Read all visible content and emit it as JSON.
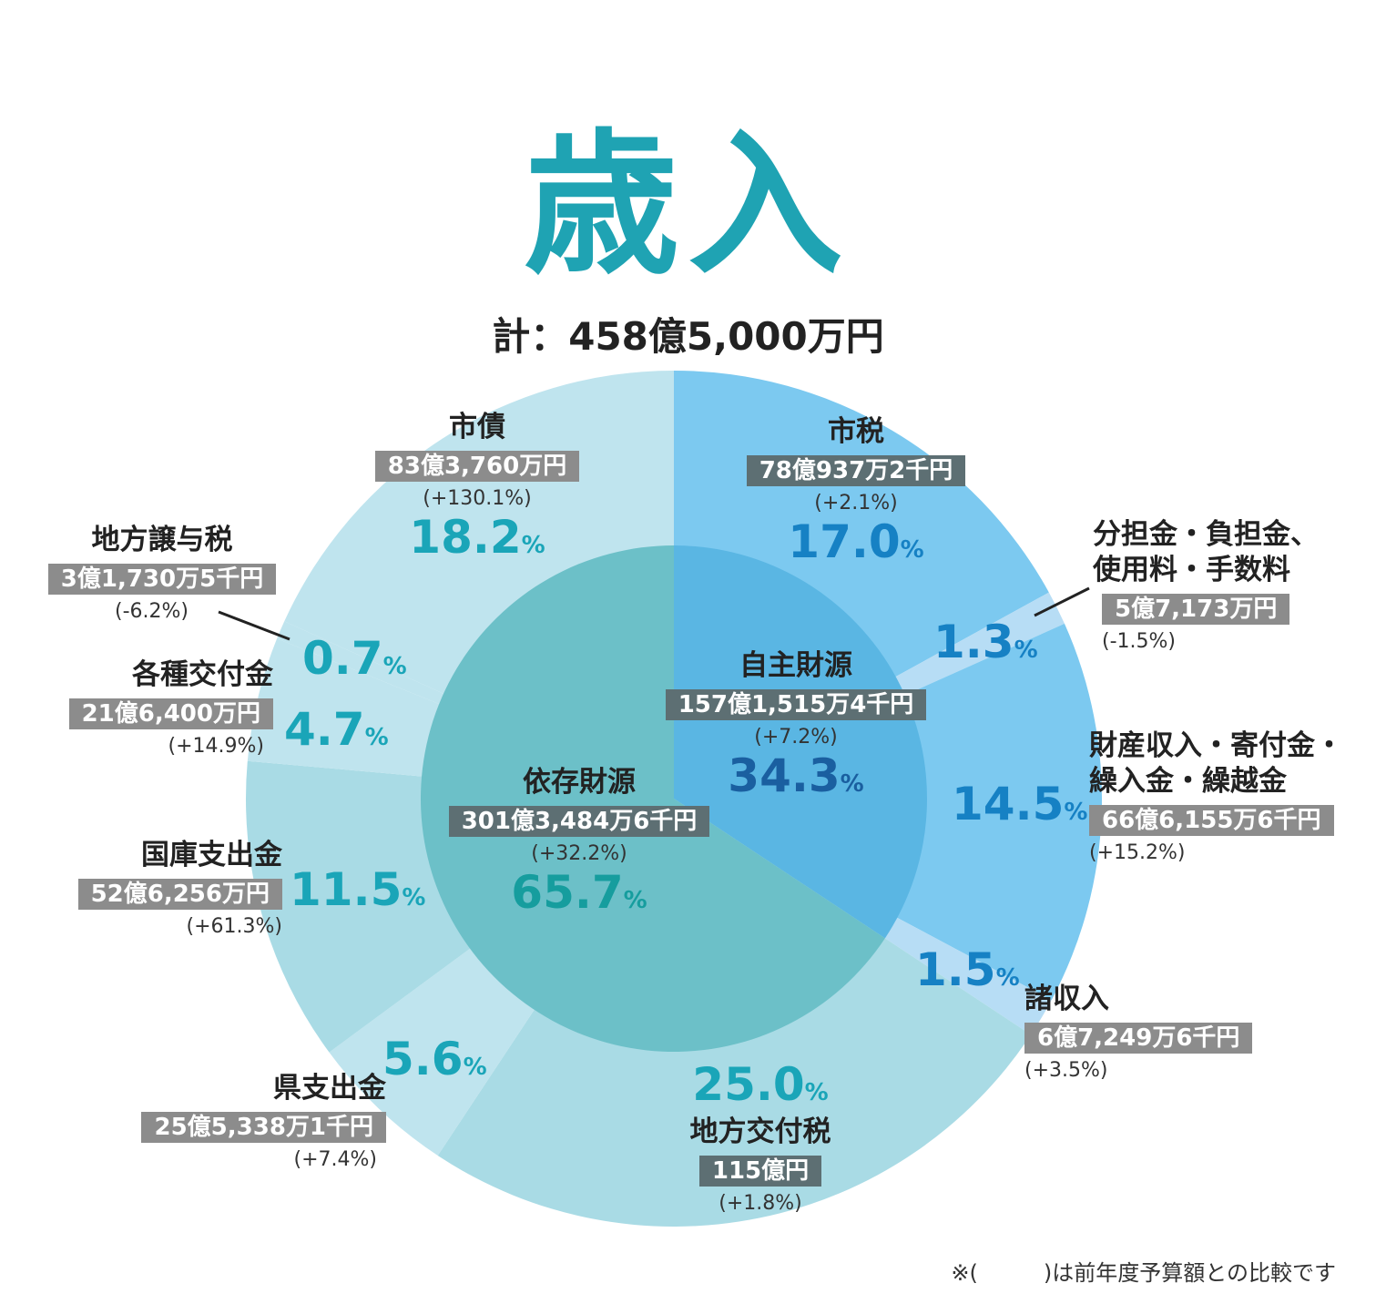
{
  "title": "歳入",
  "total": "計：458億5,000万円",
  "note": "※(　　　)は前年度予算額との比較です",
  "colors": {
    "outer_own": "#7cc9f0",
    "outer_own_light": "#b7ddf5",
    "outer_dep": "#a9dbe5",
    "outer_dep_light": "#bfe4ee",
    "inner_own": "#5ab6e3",
    "inner_dep": "#6cc0c8",
    "title": "#1fa3b3"
  },
  "chart_data": {
    "type": "pie",
    "title": "歳入",
    "total": "458億5,000万円",
    "outer": [
      {
        "name": "市税",
        "amount": "78億937万2千円",
        "change": "(+2.1%)",
        "percent": 17.0,
        "group": "自主財源"
      },
      {
        "name": "分担金・負担金、\n使用料・手数料",
        "amount": "5億7,173万円",
        "change": "(-1.5%)",
        "percent": 1.3,
        "group": "自主財源"
      },
      {
        "name": "財産収入・寄付金・\n繰入金・繰越金",
        "amount": "66億6,155万6千円",
        "change": "(+15.2%)",
        "percent": 14.5,
        "group": "自主財源"
      },
      {
        "name": "諸収入",
        "amount": "6億7,249万6千円",
        "change": "(+3.5%)",
        "percent": 1.5,
        "group": "自主財源"
      },
      {
        "name": "地方交付税",
        "amount": "115億円",
        "change": "(+1.8%)",
        "percent": 25.0,
        "group": "依存財源"
      },
      {
        "name": "県支出金",
        "amount": "25億5,338万1千円",
        "change": "(+7.4%)",
        "percent": 5.6,
        "group": "依存財源"
      },
      {
        "name": "国庫支出金",
        "amount": "52億6,256万円",
        "change": "(+61.3%)",
        "percent": 11.5,
        "group": "依存財源"
      },
      {
        "name": "各種交付金",
        "amount": "21億6,400万円",
        "change": "(+14.9%)",
        "percent": 4.7,
        "group": "依存財源"
      },
      {
        "name": "地方譲与税",
        "amount": "3億1,730万5千円",
        "change": "(-6.2%)",
        "percent": 0.7,
        "group": "依存財源"
      },
      {
        "name": "市債",
        "amount": "83億3,760万円",
        "change": "(+130.1%)",
        "percent": 18.2,
        "group": "依存財源"
      }
    ],
    "inner": [
      {
        "name": "自主財源",
        "amount": "157億1,515万4千円",
        "change": "(+7.2%)",
        "percent": 34.3
      },
      {
        "name": "依存財源",
        "amount": "301億3,484万6千円",
        "change": "(+32.2%)",
        "percent": 65.7
      }
    ],
    "percent_unit": "%"
  }
}
